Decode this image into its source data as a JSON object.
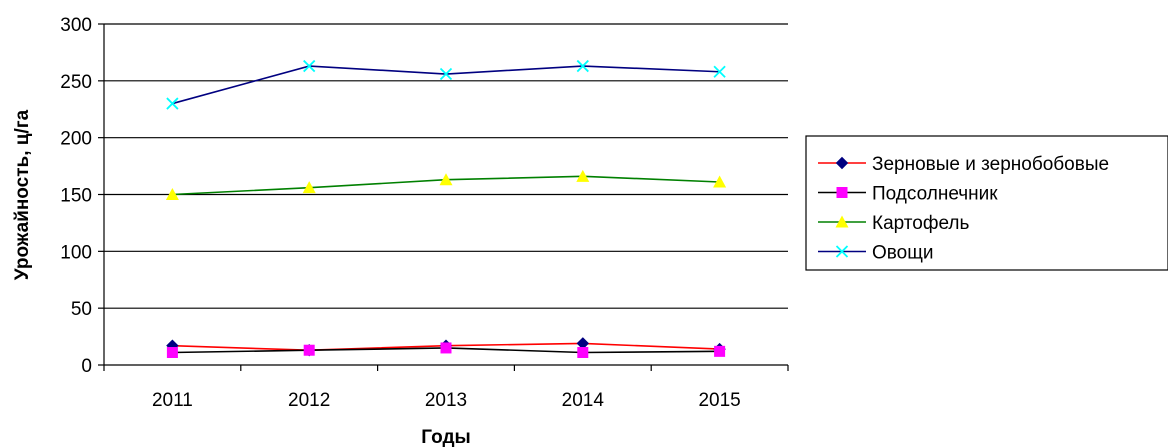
{
  "chart_data": {
    "type": "line",
    "title": "",
    "xlabel": "Годы",
    "ylabel": "Урожайность, ц/га",
    "categories": [
      "2011",
      "2012",
      "2013",
      "2014",
      "2015"
    ],
    "ylim": [
      0,
      300
    ],
    "yticks": [
      0,
      50,
      100,
      150,
      200,
      250,
      300
    ],
    "grid": true,
    "legend_position": "right",
    "series": [
      {
        "name": "Зерновые и зернобобовые",
        "values": [
          17,
          13,
          17,
          19,
          14
        ],
        "color": "#ff0000",
        "marker": "diamond",
        "marker_color": "#000080"
      },
      {
        "name": "Подсолнечник",
        "values": [
          11,
          13,
          15,
          11,
          12
        ],
        "color": "#000000",
        "marker": "square",
        "marker_color": "#ff00ff"
      },
      {
        "name": "Картофель",
        "values": [
          150,
          156,
          163,
          166,
          161
        ],
        "color": "#008000",
        "marker": "triangle",
        "marker_color": "#ffff00"
      },
      {
        "name": "Овощи",
        "values": [
          230,
          263,
          256,
          263,
          258
        ],
        "color": "#000080",
        "marker": "x",
        "marker_color": "#00ffff"
      }
    ]
  }
}
